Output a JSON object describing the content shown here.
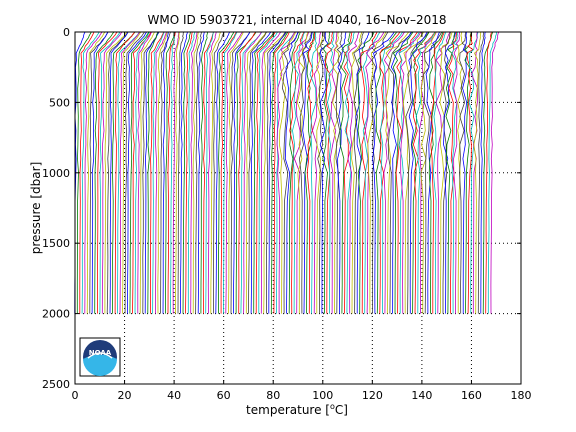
{
  "chart_data": {
    "type": "line",
    "title": "WMO ID 5903721, internal ID 4040, 16–Nov–2018",
    "xlabel": "temperature [°C]",
    "xlabel_text": "temperature [",
    "xlabel_unit": "C]",
    "xlabel_degree": "o",
    "ylabel": "pressure [dbar]",
    "xlim": [
      0,
      180
    ],
    "ylim": [
      0,
      2500
    ],
    "y_reversed": true,
    "xticks": [
      0,
      20,
      40,
      60,
      80,
      100,
      120,
      140,
      160,
      180
    ],
    "yticks": [
      0,
      500,
      1000,
      1500,
      2000,
      2500
    ],
    "grid": "dotted",
    "series_description": "waterfall of temperature profiles, each profile offset along the temperature axis",
    "profile_count": 166,
    "first_profile_offset": 0,
    "last_profile_offset": 168,
    "profile_max_pressure": 2000,
    "line_colors": [
      "#0000ff",
      "#008000",
      "#ff0000",
      "#00bfbf",
      "#bf00bf",
      "#bfbf00",
      "#404040"
    ],
    "logo": {
      "text": "NOAA",
      "icon": "noaa-logo-icon"
    }
  }
}
